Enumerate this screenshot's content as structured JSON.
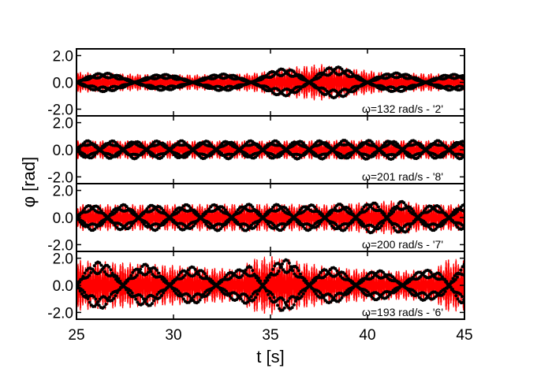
{
  "chart_data": {
    "type": "line",
    "xlabel": "t [s]",
    "ylabel": "φ [rad]",
    "xlim": [
      25,
      45
    ],
    "xticks": [
      25,
      30,
      35,
      40,
      45
    ],
    "grid": false,
    "colors": {
      "simulation": "#ff0000",
      "measurement": "#000000"
    },
    "panels": [
      {
        "annotation": "ω=132 rad/s - '2'",
        "ylim": [
          -2.5,
          2.5
        ],
        "yticks": [
          {
            "value": 2.0,
            "label": "2.0"
          },
          {
            "value": 0.0,
            "label": "0.0"
          },
          {
            "value": -2.0,
            "label": "-2.0"
          }
        ],
        "envelope": [
          [
            25,
            0.8
          ],
          [
            28,
            0.65
          ],
          [
            31,
            0.6
          ],
          [
            34,
            0.7
          ],
          [
            36,
            1.15
          ],
          [
            37.5,
            1.4
          ],
          [
            39,
            1.1
          ],
          [
            41,
            0.75
          ],
          [
            43,
            0.7
          ],
          [
            45,
            0.6
          ]
        ],
        "beat_period": 3.0
      },
      {
        "annotation": "ω=201 rad/s - '8'",
        "ylim": [
          -2.5,
          2.5
        ],
        "yticks": [
          {
            "value": 2.0,
            "label": "2.0"
          },
          {
            "value": 0.0,
            "label": "0.0"
          },
          {
            "value": -2.0,
            "label": "-2.0"
          }
        ],
        "envelope": [
          [
            25,
            0.7
          ],
          [
            30,
            0.7
          ],
          [
            35,
            0.7
          ],
          [
            40,
            0.75
          ],
          [
            45,
            0.7
          ]
        ],
        "beat_period": 1.2
      },
      {
        "annotation": "ω=200 rad/s - '7'",
        "ylim": [
          -2.5,
          2.5
        ],
        "yticks": [
          {
            "value": 2.0,
            "label": "2.0"
          },
          {
            "value": 0.0,
            "label": "0.0"
          },
          {
            "value": -2.0,
            "label": "-2.0"
          }
        ],
        "envelope": [
          [
            25,
            1.0
          ],
          [
            30,
            1.0
          ],
          [
            34,
            1.05
          ],
          [
            38,
            1.0
          ],
          [
            41.5,
            1.3
          ],
          [
            43,
            1.0
          ],
          [
            45,
            1.0
          ]
        ],
        "beat_period": 1.6
      },
      {
        "annotation": "ω=193 rad/s - '6'",
        "ylim": [
          -2.5,
          2.5
        ],
        "yticks": [
          {
            "value": 2.0,
            "label": "2.0"
          },
          {
            "value": 0.0,
            "label": "0.0"
          },
          {
            "value": -2.0,
            "label": "-2.0"
          }
        ],
        "envelope": [
          [
            25,
            1.9
          ],
          [
            29,
            1.6
          ],
          [
            33.5,
            1.2
          ],
          [
            34,
            2.0
          ],
          [
            35,
            2.2
          ],
          [
            38,
            1.4
          ],
          [
            41,
            1.1
          ],
          [
            43.5,
            1.2
          ],
          [
            44,
            2.0
          ],
          [
            45,
            1.9
          ]
        ],
        "beat_period": 2.4
      }
    ]
  }
}
